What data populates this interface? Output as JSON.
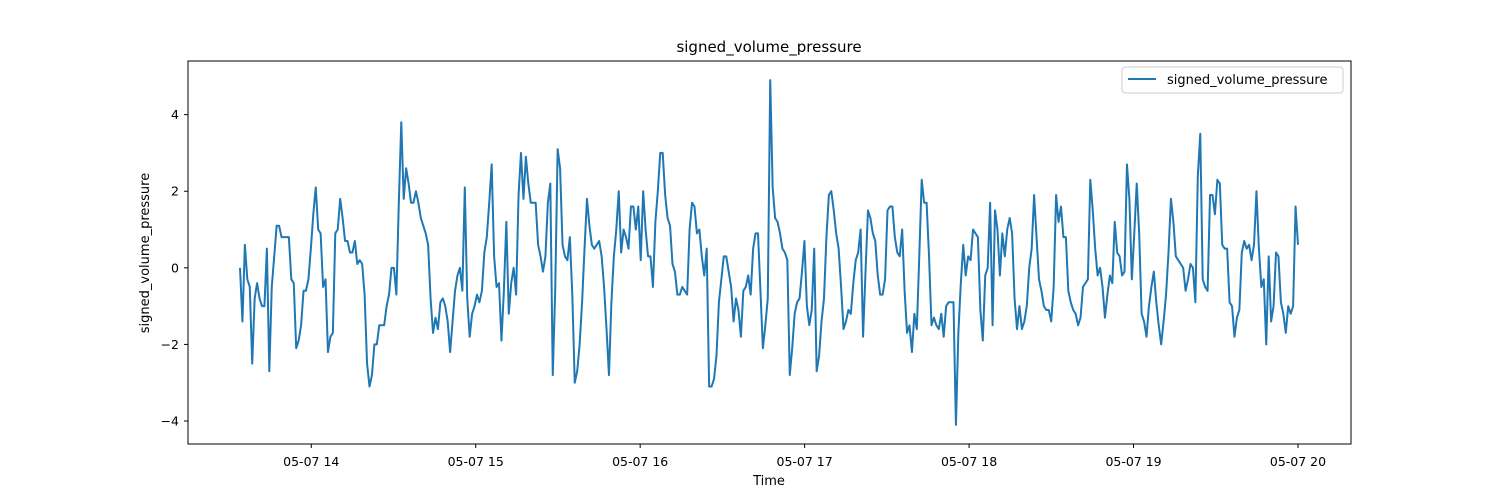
{
  "chart_data": {
    "type": "line",
    "title": "signed_volume_pressure",
    "xlabel": "Time",
    "ylabel": "signed_volume_pressure",
    "x_start": "05-07 13:34",
    "x_end": "05-07 20:00",
    "x_ticks": [
      {
        "time": "14:00",
        "label": "05-07 14"
      },
      {
        "time": "15:00",
        "label": "05-07 15"
      },
      {
        "time": "16:00",
        "label": "05-07 16"
      },
      {
        "time": "17:00",
        "label": "05-07 17"
      },
      {
        "time": "18:00",
        "label": "05-07 18"
      },
      {
        "time": "19:00",
        "label": "05-07 19"
      },
      {
        "time": "20:00",
        "label": "05-07 20"
      }
    ],
    "y_ticks": [
      {
        "value": -4,
        "label": "−4"
      },
      {
        "value": -2,
        "label": "−2"
      },
      {
        "value": 0,
        "label": "0"
      },
      {
        "value": 2,
        "label": "2"
      },
      {
        "value": 4,
        "label": "4"
      }
    ],
    "ylim": [
      -4.6,
      5.4
    ],
    "grid": false,
    "legend_position": "top-right",
    "series": [
      {
        "name": "signed_volume_pressure",
        "color": "#1f77b4",
        "values": [
          0.0,
          -1.4,
          0.6,
          -0.3,
          -0.5,
          -2.5,
          -0.8,
          -0.4,
          -0.8,
          -1.0,
          -1.0,
          0.5,
          -2.7,
          -0.5,
          0.3,
          1.1,
          1.1,
          0.8,
          0.8,
          0.8,
          0.8,
          -0.3,
          -0.4,
          -2.1,
          -1.9,
          -1.5,
          -0.6,
          -0.6,
          -0.3,
          0.5,
          1.4,
          2.1,
          1.0,
          0.9,
          -0.5,
          -0.3,
          -2.2,
          -1.8,
          -1.7,
          0.9,
          1.0,
          1.8,
          1.3,
          0.7,
          0.7,
          0.4,
          0.4,
          0.7,
          0.1,
          0.2,
          0.1,
          -0.7,
          -2.5,
          -3.1,
          -2.8,
          -2.0,
          -2.0,
          -1.5,
          -1.5,
          -1.5,
          -1.0,
          -0.7,
          0.0,
          0.0,
          -0.7,
          1.7,
          3.8,
          1.8,
          2.6,
          2.2,
          1.7,
          1.7,
          2.0,
          1.7,
          1.3,
          1.1,
          0.9,
          0.6,
          -0.8,
          -1.7,
          -1.3,
          -1.6,
          -0.9,
          -0.8,
          -1.0,
          -1.4,
          -2.2,
          -1.4,
          -0.6,
          -0.2,
          0.0,
          -0.6,
          2.1,
          -0.8,
          -1.8,
          -1.2,
          -1.0,
          -0.7,
          -0.9,
          -0.6,
          0.4,
          0.8,
          1.7,
          2.7,
          0.3,
          -0.5,
          -0.4,
          -1.9,
          -0.6,
          1.2,
          -1.2,
          -0.4,
          0.0,
          -0.7,
          1.9,
          3.0,
          1.8,
          2.9,
          2.2,
          1.7,
          1.7,
          1.7,
          0.6,
          0.3,
          -0.1,
          0.3,
          1.7,
          2.2,
          -2.8,
          -0.6,
          3.1,
          2.6,
          0.6,
          0.3,
          0.2,
          0.8,
          -0.7,
          -3.0,
          -2.7,
          -2.0,
          -0.9,
          0.5,
          1.8,
          1.1,
          0.6,
          0.5,
          0.6,
          0.7,
          0.3,
          -0.5,
          -1.6,
          -2.8,
          -0.9,
          0.3,
          1.0,
          2.0,
          0.4,
          1.0,
          0.8,
          0.5,
          1.6,
          1.6,
          1.0,
          1.6,
          0.2,
          2.0,
          1.0,
          0.3,
          0.3,
          -0.5,
          1.2,
          2.0,
          3.0,
          3.0,
          1.9,
          1.3,
          1.1,
          0.1,
          -0.1,
          -0.7,
          -0.7,
          -0.5,
          -0.6,
          -0.7,
          1.0,
          1.7,
          1.6,
          0.9,
          1.0,
          0.3,
          -0.2,
          0.5,
          -3.1,
          -3.1,
          -2.9,
          -2.3,
          -0.9,
          -0.3,
          0.3,
          0.3,
          -0.1,
          -0.5,
          -1.4,
          -0.8,
          -1.1,
          -1.8,
          -0.6,
          -0.5,
          -0.2,
          -0.7,
          0.5,
          0.9,
          0.9,
          -0.6,
          -2.1,
          -1.5,
          -0.8,
          4.9,
          2.1,
          1.3,
          1.2,
          0.9,
          0.5,
          0.4,
          0.2,
          -2.8,
          -2.1,
          -1.2,
          -0.9,
          -0.8,
          -0.1,
          0.7,
          -1.0,
          -1.5,
          -1.1,
          0.5,
          -2.7,
          -2.3,
          -1.4,
          -0.8,
          0.8,
          1.9,
          2.0,
          1.5,
          0.9,
          0.5,
          -0.5,
          -1.6,
          -1.4,
          -1.1,
          -1.2,
          -0.4,
          0.2,
          0.4,
          1.0,
          -1.8,
          -0.1,
          1.5,
          1.3,
          0.9,
          0.7,
          -0.2,
          -0.7,
          -0.7,
          -0.3,
          1.5,
          1.6,
          1.6,
          0.8,
          0.4,
          0.3,
          1.0,
          -0.6,
          -1.7,
          -1.5,
          -2.2,
          -1.2,
          -1.6,
          0.3,
          2.3,
          1.7,
          1.7,
          0.3,
          -1.5,
          -1.3,
          -1.5,
          -1.6,
          -1.2,
          -1.8,
          -1.0,
          -0.9,
          -0.9,
          -0.9,
          -4.1,
          -1.7,
          -0.4,
          0.6,
          -0.2,
          0.3,
          0.2,
          1.0,
          0.9,
          0.8,
          -1.1,
          -1.9,
          -0.2,
          0.0,
          1.7,
          -1.5,
          1.5,
          1.0,
          -0.2,
          0.9,
          0.3,
          1.0,
          1.3,
          0.9,
          -0.8,
          -1.6,
          -1.0,
          -1.6,
          -1.4,
          -1.0,
          0.0,
          0.5,
          1.9,
          0.8,
          -0.3,
          -0.6,
          -1.0,
          -1.1,
          -1.1,
          -1.4,
          -0.5,
          1.9,
          1.2,
          1.6,
          0.8,
          0.8,
          -0.6,
          -0.9,
          -1.1,
          -1.2,
          -1.5,
          -1.3,
          -0.5,
          -0.4,
          -0.3,
          2.3,
          1.5,
          0.5,
          -0.2,
          0.0,
          -0.5,
          -1.3,
          -0.7,
          -0.2,
          -0.4,
          1.2,
          0.4,
          0.3,
          -0.2,
          -0.1,
          2.7,
          1.8,
          -0.3,
          0.9,
          2.2,
          0.9,
          -1.2,
          -1.4,
          -1.8,
          -1.0,
          -0.5,
          -0.1,
          -0.9,
          -1.5,
          -2.0,
          -1.4,
          -0.7,
          0.4,
          1.8,
          1.2,
          0.3,
          0.2,
          0.1,
          0.0,
          -0.6,
          -0.3,
          0.1,
          0.0,
          -0.9,
          2.4,
          3.5,
          -0.3,
          -0.5,
          -0.6,
          1.9,
          1.9,
          1.4,
          2.3,
          2.2,
          0.6,
          0.5,
          0.5,
          -0.9,
          -1.0,
          -1.8,
          -1.3,
          -1.1,
          0.4,
          0.7,
          0.5,
          0.6,
          0.2,
          0.6,
          2.0,
          0.5,
          -0.5,
          -0.3,
          -2.0,
          0.3,
          -1.4,
          -1.0,
          0.4,
          0.3,
          -0.9,
          -1.2,
          -1.7,
          -1.0,
          -1.2,
          -1.0,
          1.6,
          0.6
        ]
      }
    ]
  }
}
